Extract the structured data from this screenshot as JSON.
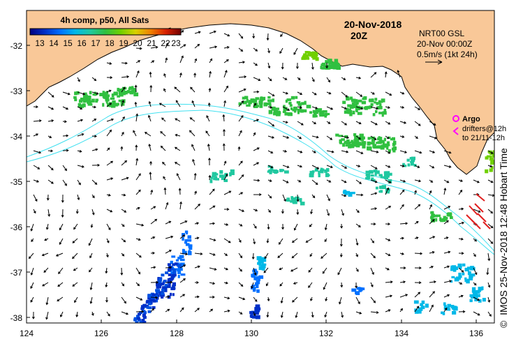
{
  "title": {
    "date": "20-Nov-2018",
    "time": "20Z"
  },
  "colorbar": {
    "title": "4h comp, p50, All Sats",
    "ticks": [
      "13",
      "14",
      "15",
      "16",
      "17",
      "18",
      "19",
      "20",
      "21",
      "22",
      "23"
    ],
    "stops": [
      "#000080",
      "#0030c8",
      "#0070ff",
      "#00b8e8",
      "#20c8a0",
      "#30c040",
      "#70d000",
      "#d8d000",
      "#f08000",
      "#d82000",
      "#700000"
    ]
  },
  "info": {
    "product": "NRT00 GSL",
    "datetime": "20-Nov 00:00Z",
    "scale": "0.5m/s (1kt 24h)"
  },
  "legend": {
    "argo_label": "Argo",
    "drifters_line1": "drifters@12h",
    "drifters_line2": "to 21/11-12h",
    "argo_color": "#ff00ff"
  },
  "credit": "IMOS 25-Nov-2018 12:48 Hobart Time",
  "copyright_symbol": "©",
  "axes": {
    "x_ticks": [
      "124",
      "126",
      "128",
      "130",
      "132",
      "134",
      "136"
    ],
    "y_ticks": [
      "-32",
      "-33",
      "-34",
      "-35",
      "-36",
      "-37",
      "-38"
    ],
    "lon_range": [
      124,
      136.5
    ],
    "lat_range": [
      -38.1,
      -31.4
    ]
  },
  "colors": {
    "land": "#f9c898",
    "coast": "#000000",
    "isobath": "#40e0f0",
    "drifter": "#e02020"
  }
}
